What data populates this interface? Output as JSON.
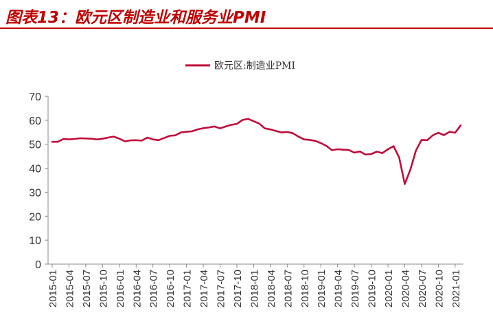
{
  "figure": {
    "title": "图表13：欧元区制造业和服务业PMI"
  },
  "chart_data": {
    "type": "line",
    "ylim": [
      0,
      70
    ],
    "yticks": [
      0,
      10,
      20,
      30,
      40,
      50,
      60,
      70
    ],
    "xtick_labels": [
      "2015-01",
      "2015-04",
      "2015-07",
      "2015-10",
      "2016-01",
      "2016-04",
      "2016-07",
      "2016-10",
      "2017-01",
      "2017-04",
      "2017-07",
      "2017-10",
      "2018-01",
      "2018-04",
      "2018-07",
      "2018-10",
      "2019-01",
      "2019-04",
      "2019-07",
      "2019-10",
      "2020-01",
      "2020-04",
      "2020-07",
      "2020-10",
      "2021-01"
    ],
    "grid": false,
    "legend_position": "top-center",
    "colors": {
      "series": "#c00c3a",
      "title": "#c00000",
      "axis": "#888888",
      "text": "#333333"
    },
    "series": [
      {
        "name": "欧元区:制造业PMI",
        "x": [
          "2015-01",
          "2015-02",
          "2015-03",
          "2015-04",
          "2015-05",
          "2015-06",
          "2015-07",
          "2015-08",
          "2015-09",
          "2015-10",
          "2015-11",
          "2015-12",
          "2016-01",
          "2016-02",
          "2016-03",
          "2016-04",
          "2016-05",
          "2016-06",
          "2016-07",
          "2016-08",
          "2016-09",
          "2016-10",
          "2016-11",
          "2016-12",
          "2017-01",
          "2017-02",
          "2017-03",
          "2017-04",
          "2017-05",
          "2017-06",
          "2017-07",
          "2017-08",
          "2017-09",
          "2017-10",
          "2017-11",
          "2017-12",
          "2018-01",
          "2018-02",
          "2018-03",
          "2018-04",
          "2018-05",
          "2018-06",
          "2018-07",
          "2018-08",
          "2018-09",
          "2018-10",
          "2018-11",
          "2018-12",
          "2019-01",
          "2019-02",
          "2019-03",
          "2019-04",
          "2019-05",
          "2019-06",
          "2019-07",
          "2019-08",
          "2019-09",
          "2019-10",
          "2019-11",
          "2019-12",
          "2020-01",
          "2020-02",
          "2020-03",
          "2020-04",
          "2020-05",
          "2020-06",
          "2020-07",
          "2020-08",
          "2020-09",
          "2020-10",
          "2020-11",
          "2020-12",
          "2021-01",
          "2021-02"
        ],
        "values": [
          51.0,
          51.0,
          52.2,
          52.0,
          52.2,
          52.5,
          52.4,
          52.3,
          52.0,
          52.3,
          52.8,
          53.2,
          52.3,
          51.2,
          51.6,
          51.7,
          51.5,
          52.8,
          52.0,
          51.7,
          52.6,
          53.5,
          53.7,
          54.9,
          55.2,
          55.4,
          56.2,
          56.7,
          57.0,
          57.4,
          56.6,
          57.4,
          58.1,
          58.5,
          60.1,
          60.6,
          59.6,
          58.6,
          56.6,
          56.2,
          55.5,
          54.9,
          55.1,
          54.6,
          53.2,
          52.0,
          51.8,
          51.4,
          50.5,
          49.3,
          47.5,
          47.9,
          47.7,
          47.6,
          46.5,
          47.0,
          45.7,
          45.9,
          46.9,
          46.3,
          47.9,
          49.2,
          44.5,
          33.4,
          39.4,
          47.4,
          51.8,
          51.7,
          53.7,
          54.8,
          53.8,
          55.2,
          54.8,
          57.9
        ]
      }
    ]
  }
}
